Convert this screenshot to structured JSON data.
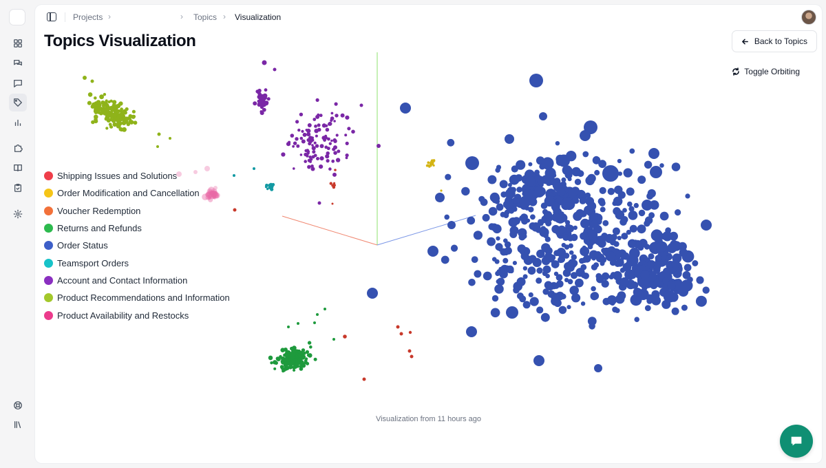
{
  "breadcrumb": {
    "projects": "Projects",
    "topics": "Topics",
    "current": "Visualization"
  },
  "page": {
    "title": "Topics Visualization",
    "back_label": "Back to Topics",
    "orbit_label": "Toggle Orbiting",
    "footer": "Visualization from 11 hours ago"
  },
  "legend": [
    {
      "label": "Shipping Issues and Solutions",
      "color": "#ef3e4a"
    },
    {
      "label": "Order Modification and Cancellation",
      "color": "#f5c518"
    },
    {
      "label": "Voucher Redemption",
      "color": "#f2713a"
    },
    {
      "label": "Returns and Refunds",
      "color": "#2dba4e"
    },
    {
      "label": "Order Status",
      "color": "#3d5fc8"
    },
    {
      "label": "Teamsport Orders",
      "color": "#17c3c9"
    },
    {
      "label": "Account and Contact Information",
      "color": "#8a2fc0"
    },
    {
      "label": "Product Recommendations and Information",
      "color": "#a3c82b"
    },
    {
      "label": "Product Availability and Restocks",
      "color": "#ec3b8c"
    }
  ],
  "rail_icons": [
    "dashboard-icon",
    "conversations-icon",
    "message-icon",
    "tag-icon",
    "chart-icon",
    "puzzle-icon",
    "book-icon",
    "clipboard-icon",
    "settings-icon",
    "help-icon",
    "library-icon"
  ],
  "cluster_colors": {
    "status": "#3551b0",
    "account": "#7a27a6",
    "product_info": "#8fb31a",
    "returns": "#1e9a3d",
    "shipping": "#c8392b",
    "teamsport": "#139aa3",
    "modification": "#d4b414",
    "availability": "#e96aa6",
    "axis_x": "#f0866f",
    "axis_y": "#8ce06c",
    "axis_z": "#7a96e6"
  }
}
